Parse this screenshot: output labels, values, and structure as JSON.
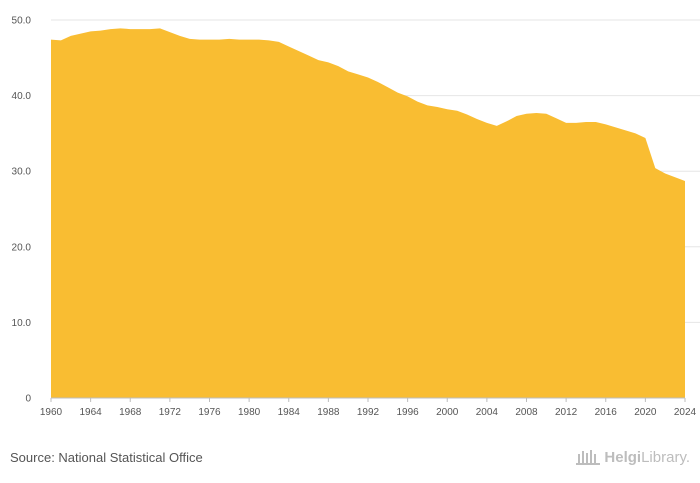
{
  "chart_data": {
    "type": "area",
    "title": "",
    "xlabel": "",
    "ylabel": "",
    "color": "#F9BD32",
    "xlim": [
      1960,
      2024
    ],
    "ylim": [
      0,
      50
    ],
    "y_ticks": [
      0,
      10,
      20,
      30,
      40,
      50
    ],
    "y_tick_labels": [
      "0",
      "10.0",
      "20.0",
      "30.0",
      "40.0",
      "50.0"
    ],
    "x_tick_labels": [
      "1960",
      "1964",
      "1968",
      "1972",
      "1976",
      "1980",
      "1984",
      "1988",
      "1992",
      "1996",
      "2000",
      "2004",
      "2008",
      "2012",
      "2016",
      "2020",
      "2024"
    ],
    "grid": true,
    "x": [
      1960,
      1961,
      1962,
      1963,
      1964,
      1965,
      1966,
      1967,
      1968,
      1969,
      1970,
      1971,
      1972,
      1973,
      1974,
      1975,
      1976,
      1977,
      1978,
      1979,
      1980,
      1981,
      1982,
      1983,
      1984,
      1985,
      1986,
      1987,
      1988,
      1989,
      1990,
      1991,
      1992,
      1993,
      1994,
      1995,
      1996,
      1997,
      1998,
      1999,
      2000,
      2001,
      2002,
      2003,
      2004,
      2005,
      2006,
      2007,
      2008,
      2009,
      2010,
      2011,
      2012,
      2013,
      2014,
      2015,
      2016,
      2017,
      2018,
      2019,
      2020,
      2021,
      2022,
      2023,
      2024
    ],
    "values": [
      47.4,
      47.3,
      47.9,
      48.2,
      48.5,
      48.6,
      48.8,
      48.9,
      48.8,
      48.8,
      48.8,
      48.9,
      48.4,
      47.9,
      47.5,
      47.4,
      47.4,
      47.4,
      47.5,
      47.4,
      47.4,
      47.4,
      47.3,
      47.1,
      46.5,
      45.9,
      45.3,
      44.7,
      44.4,
      43.9,
      43.2,
      42.8,
      42.4,
      41.8,
      41.1,
      40.4,
      39.9,
      39.2,
      38.7,
      38.5,
      38.2,
      38.0,
      37.5,
      36.9,
      36.4,
      36.0,
      36.6,
      37.3,
      37.6,
      37.7,
      37.6,
      37.0,
      36.4,
      36.4,
      36.5,
      36.5,
      36.2,
      35.8,
      35.4,
      35.0,
      34.4,
      30.4,
      29.7,
      29.2,
      28.7
    ]
  },
  "footer": {
    "source": "Source: National Statistical Office",
    "brand_bold": "Helgi",
    "brand_rest": "Library."
  }
}
